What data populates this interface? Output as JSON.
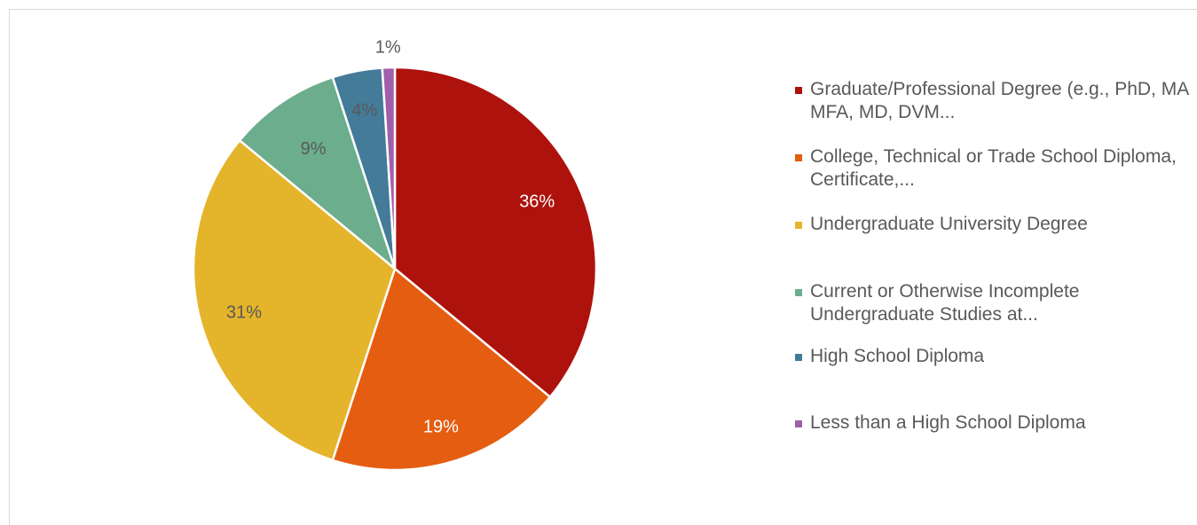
{
  "chart_data": {
    "type": "pie",
    "title": "",
    "legend": "right",
    "label_color": "#595959",
    "label_color_dark_slice": "#ffffff",
    "slices": [
      {
        "name": "Graduate/Professional Degree (e.g., PhD, MA MFA, MD, DVM...",
        "value": 36,
        "label": "36%",
        "color": "#AE120D"
      },
      {
        "name": "College, Technical or Trade School Diploma, Certificate,...",
        "value": 19,
        "label": "19%",
        "color": "#E55D10"
      },
      {
        "name": "Undergraduate University Degree",
        "value": 31,
        "label": "31%",
        "color": "#E4B42A"
      },
      {
        "name": "Current or Otherwise Incomplete Undergraduate Studies at...",
        "value": 9,
        "label": "9%",
        "color": "#6BAD8C"
      },
      {
        "name": "High School Diploma",
        "value": 4,
        "label": "4%",
        "color": "#437B99"
      },
      {
        "name": "Less than a High School Diploma",
        "value": 1,
        "label": "1%",
        "color": "#A15EAA"
      }
    ]
  }
}
